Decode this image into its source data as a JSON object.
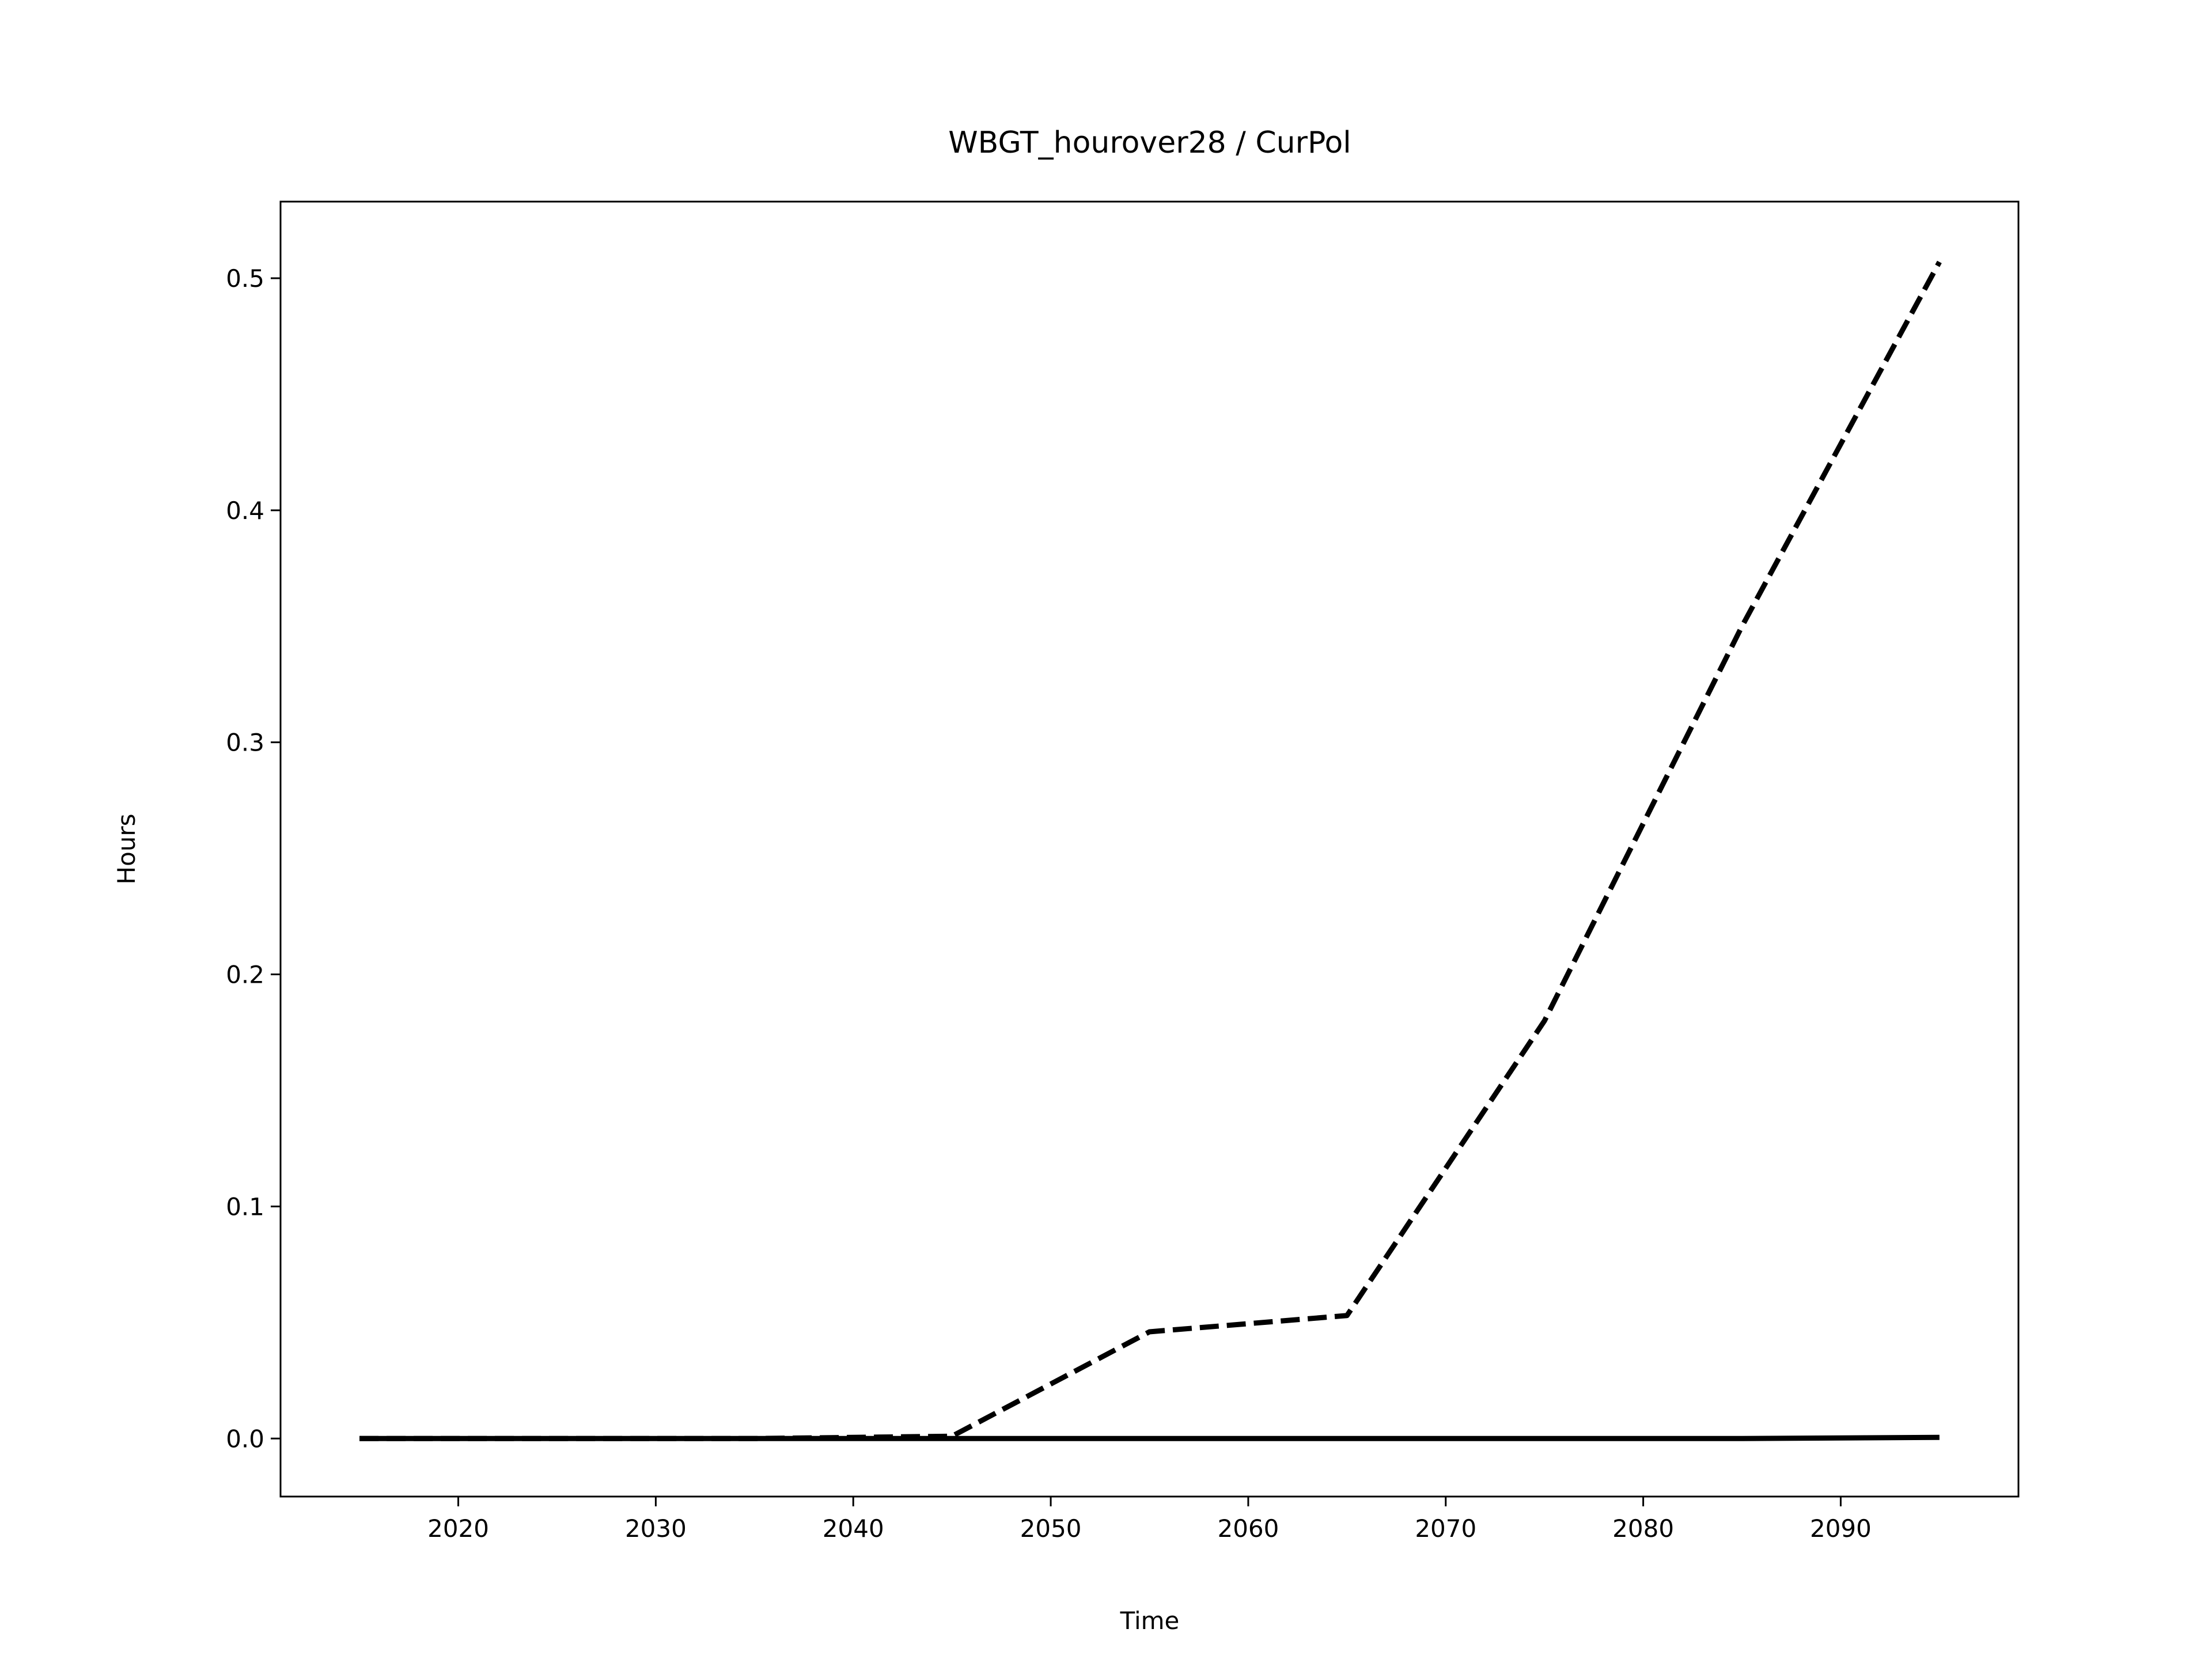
{
  "chart_data": {
    "type": "line",
    "title": "WBGT_hourover28 / CurPol",
    "x_label": "Time",
    "y_label": "Hours",
    "x": [
      2015,
      2025,
      2035,
      2045,
      2055,
      2065,
      2075,
      2085,
      2095
    ],
    "series": [
      {
        "color": "#000000",
        "style": "solid",
        "values": [
          0,
          0,
          0,
          0,
          0,
          0,
          0,
          0,
          0.0005
        ]
      },
      {
        "color": "#000000",
        "style": "dashed",
        "values": [
          0,
          0,
          0,
          0.001,
          0.046,
          0.053,
          0.18,
          0.35,
          0.507
        ]
      }
    ],
    "xlim": [
      2011,
      2099
    ],
    "xticks": [
      2020,
      2030,
      2040,
      2050,
      2060,
      2070,
      2080,
      2090
    ],
    "ylim": [
      -0.025,
      0.533
    ],
    "yticks": [
      {
        "value": 0,
        "label": "0.0"
      },
      0.1,
      0.2,
      0.3,
      0.4,
      0.5
    ],
    "grid": false
  }
}
